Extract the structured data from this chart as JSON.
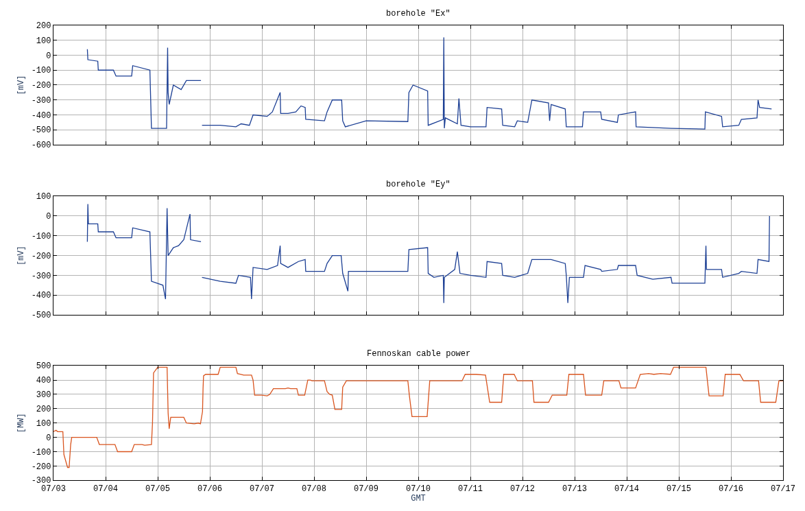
{
  "chart_data": [
    {
      "type": "line",
      "title": "borehole \"Ex\"",
      "ylabel": "[mV]",
      "grid": true,
      "tick_labels": "y",
      "xlim": [
        "--07-03",
        "--07-17"
      ],
      "xticks": [
        {
          "value": "--07-03",
          "label": "07/03"
        },
        {
          "value": "--07-04",
          "label": "07/04"
        },
        {
          "value": "--07-05",
          "label": "07/05"
        },
        {
          "value": "--07-06",
          "label": "07/06"
        },
        {
          "value": "--07-07",
          "label": "07/07"
        },
        {
          "value": "--07-08",
          "label": "07/08"
        },
        {
          "value": "--07-09",
          "label": "07/09"
        },
        {
          "value": "--07-10",
          "label": "07/10"
        },
        {
          "value": "--07-11",
          "label": "07/11"
        },
        {
          "value": "--07-12",
          "label": "07/12"
        },
        {
          "value": "--07-13",
          "label": "07/13"
        },
        {
          "value": "--07-14",
          "label": "07/14"
        },
        {
          "value": "--07-15",
          "label": "07/15"
        },
        {
          "value": "--07-16",
          "label": "07/16"
        },
        {
          "value": "--07-17",
          "label": "07/17"
        }
      ],
      "ylim": [
        -600,
        200
      ],
      "yticks": [
        -600,
        -500,
        -400,
        -300,
        -200,
        -100,
        0,
        100,
        200
      ],
      "series": [
        {
          "color": "#1c3f94",
          "x": [
            "--07-03T15:36",
            "--07-03T15:50",
            "--07-03T20:24",
            "--07-03T20:38",
            "--07-04T03:36",
            "--07-04T04:48",
            "--07-04T12:00",
            "--07-04T12:29",
            "--07-04T20:24",
            "--07-04T21:07",
            "--07-05T04:05",
            "--07-05T04:34",
            "--07-05T04:48",
            "--07-05T05:17",
            "--07-05T07:12",
            "--07-05T10:48",
            "--07-05T13:12",
            "--07-05T19:55",
            "--07-05T20:10",
            "--07-05T20:24",
            "--07-06T04:48",
            "--07-06T12:00",
            "--07-06T14:24",
            "--07-06T18:14",
            "--07-06T19:55",
            "--07-07T02:24",
            "--07-07T04:48",
            "--07-07T08:24",
            "--07-07T08:38",
            "--07-07T12:00",
            "--07-07T15:36",
            "--07-07T18:00",
            "--07-07T19:55",
            "--07-07T20:10",
            "--07-08T04:48",
            "--07-08T06:00",
            "--07-08T08:24",
            "--07-08T12:43",
            "--07-08T13:12",
            "--07-08T14:24",
            "--07-09T00:00",
            "--07-09T19:12",
            "--07-09T19:41",
            "--07-09T21:36",
            "--07-10T04:19",
            "--07-10T04:34",
            "--07-10T11:31",
            "--07-10T11:46",
            "--07-10T12:00",
            "--07-10T12:29",
            "--07-10T18:00",
            "--07-10T18:43",
            "--07-10T19:41",
            "--07-11T00:00",
            "--07-11T07:12",
            "--07-11T07:41",
            "--07-11T14:24",
            "--07-11T14:53",
            "--07-11T20:24",
            "--07-11T21:36",
            "--07-12T02:24",
            "--07-12T04:19",
            "--07-12T12:00",
            "--07-12T12:29",
            "--07-12T13:12",
            "--07-12T19:41",
            "--07-12T20:10",
            "--07-13T03:36",
            "--07-13T04:05",
            "--07-13T12:00",
            "--07-13T12:29",
            "--07-13T19:41",
            "--07-13T20:10",
            "--07-14T04:05",
            "--07-14T04:19",
            "--07-14T20:24",
            "--07-15T12:00",
            "--07-15T12:14",
            "--07-15T19:41",
            "--07-15T20:10",
            "--07-16T03:36",
            "--07-16T04:48",
            "--07-16T12:00",
            "--07-16T12:29",
            "--07-16T13:12",
            "--07-16T18:43"
          ],
          "values": [
            40,
            -30,
            -40,
            -100,
            -100,
            -140,
            -140,
            -70,
            -100,
            -490,
            -490,
            50,
            -250,
            -330,
            -200,
            -230,
            -170,
            -170,
            null,
            -470,
            -470,
            -480,
            -460,
            -470,
            -400,
            -410,
            -380,
            -250,
            -390,
            -390,
            -380,
            -340,
            -350,
            -430,
            -440,
            -380,
            -300,
            -300,
            -440,
            -480,
            -440,
            -445,
            -250,
            -200,
            -240,
            -470,
            -430,
            120,
            -490,
            -420,
            -460,
            -290,
            -470,
            -480,
            -480,
            -350,
            -360,
            -470,
            -480,
            -440,
            -450,
            -300,
            -320,
            -440,
            -330,
            -360,
            -480,
            -480,
            -380,
            -380,
            -430,
            -450,
            -400,
            -380,
            -480,
            -490,
            -495,
            -380,
            -410,
            -480,
            -470,
            -430,
            -420,
            -300,
            -350,
            -360
          ]
        }
      ]
    },
    {
      "type": "line",
      "title": "borehole \"Ey\"",
      "ylabel": "[mV]",
      "grid": true,
      "tick_labels": "y",
      "xlim": [
        "--07-03",
        "--07-17"
      ],
      "xticks": [
        {
          "value": "--07-03",
          "label": "07/03"
        },
        {
          "value": "--07-04",
          "label": "07/04"
        },
        {
          "value": "--07-05",
          "label": "07/05"
        },
        {
          "value": "--07-06",
          "label": "07/06"
        },
        {
          "value": "--07-07",
          "label": "07/07"
        },
        {
          "value": "--07-08",
          "label": "07/08"
        },
        {
          "value": "--07-09",
          "label": "07/09"
        },
        {
          "value": "--07-10",
          "label": "07/10"
        },
        {
          "value": "--07-11",
          "label": "07/11"
        },
        {
          "value": "--07-12",
          "label": "07/12"
        },
        {
          "value": "--07-13",
          "label": "07/13"
        },
        {
          "value": "--07-14",
          "label": "07/14"
        },
        {
          "value": "--07-15",
          "label": "07/15"
        },
        {
          "value": "--07-16",
          "label": "07/16"
        },
        {
          "value": "--07-17",
          "label": "07/17"
        }
      ],
      "ylim": [
        -500,
        100
      ],
      "yticks": [
        -500,
        -400,
        -300,
        -200,
        -100,
        0,
        100
      ],
      "series": [
        {
          "color": "#1c3f94",
          "x": [
            "--07-03T15:36",
            "--07-03T15:50",
            "--07-03T16:05",
            "--07-03T20:24",
            "--07-03T20:38",
            "--07-04T03:36",
            "--07-04T04:48",
            "--07-04T12:00",
            "--07-04T12:29",
            "--07-04T20:24",
            "--07-04T21:07",
            "--07-05T02:24",
            "--07-05T03:36",
            "--07-05T04:19",
            "--07-05T04:48",
            "--07-05T07:12",
            "--07-05T09:36",
            "--07-05T12:00",
            "--07-05T14:53",
            "--07-05T15:07",
            "--07-05T19:55",
            "--07-05T20:10",
            "--07-05T20:24",
            "--07-06T04:48",
            "--07-06T12:00",
            "--07-06T13:12",
            "--07-06T18:43",
            "--07-06T19:12",
            "--07-06T19:55",
            "--07-07T02:24",
            "--07-07T07:12",
            "--07-07T08:24",
            "--07-07T08:38",
            "--07-07T12:00",
            "--07-07T16:48",
            "--07-07T19:55",
            "--07-07T20:10",
            "--07-08T04:48",
            "--07-08T06:00",
            "--07-08T08:24",
            "--07-08T12:29",
            "--07-08T13:12",
            "--07-08T15:36",
            "--07-08T15:50",
            "--07-09T19:12",
            "--07-09T19:41",
            "--07-10T04:19",
            "--07-10T04:34",
            "--07-10T07:12",
            "--07-10T11:31",
            "--07-10T11:46",
            "--07-10T12:00",
            "--07-10T16:48",
            "--07-10T18:00",
            "--07-10T19:12",
            "--07-11T00:00",
            "--07-11T07:12",
            "--07-11T07:41",
            "--07-11T14:24",
            "--07-11T14:53",
            "--07-11T20:24",
            "--07-12T02:24",
            "--07-12T04:19",
            "--07-12T12:00",
            "--07-12T13:12",
            "--07-12T19:41",
            "--07-12T20:10",
            "--07-12T20:53",
            "--07-12T21:36",
            "--07-13T04:05",
            "--07-13T04:48",
            "--07-13T12:00",
            "--07-13T12:29",
            "--07-13T19:41",
            "--07-13T20:10",
            "--07-14T04:05",
            "--07-14T04:48",
            "--07-14T12:00",
            "--07-14T20:24",
            "--07-14T20:53",
            "--07-15T12:00",
            "--07-15T12:29",
            "--07-15T12:43",
            "--07-15T19:41",
            "--07-15T20:10",
            "--07-16T03:36",
            "--07-16T04:48",
            "--07-16T12:00",
            "--07-16T12:29",
            "--07-16T17:31",
            "--07-16T17:46"
          ],
          "values": [
            -130,
            60,
            -40,
            -40,
            -80,
            -80,
            -110,
            -110,
            -60,
            -80,
            -330,
            -350,
            -420,
            40,
            -200,
            -160,
            -150,
            -120,
            10,
            -120,
            -130,
            null,
            -310,
            -330,
            -340,
            -300,
            -310,
            -420,
            -260,
            -270,
            -250,
            -150,
            -240,
            -260,
            -230,
            -220,
            -280,
            -280,
            -240,
            -200,
            -200,
            -290,
            -380,
            -280,
            -280,
            -170,
            -160,
            -290,
            -310,
            -300,
            -440,
            -310,
            -270,
            -180,
            -290,
            -300,
            -310,
            -230,
            -240,
            -300,
            -310,
            -290,
            -220,
            -220,
            -220,
            -240,
            -300,
            -440,
            -310,
            -310,
            -250,
            -270,
            -280,
            -270,
            -250,
            -250,
            -300,
            -320,
            -310,
            -340,
            -340,
            -150,
            -270,
            -270,
            -310,
            -290,
            -280,
            -290,
            -220,
            -230,
            0
          ]
        }
      ]
    },
    {
      "type": "line",
      "title": "Fennoskan cable power",
      "ylabel": "[MW]",
      "xlabel": "GMT",
      "grid": true,
      "xlim": [
        "--07-03",
        "--07-17"
      ],
      "xticks": [
        {
          "value": "--07-03",
          "label": "07/03"
        },
        {
          "value": "--07-04",
          "label": "07/04"
        },
        {
          "value": "--07-05",
          "label": "07/05"
        },
        {
          "value": "--07-06",
          "label": "07/06"
        },
        {
          "value": "--07-07",
          "label": "07/07"
        },
        {
          "value": "--07-08",
          "label": "07/08"
        },
        {
          "value": "--07-09",
          "label": "07/09"
        },
        {
          "value": "--07-10",
          "label": "07/10"
        },
        {
          "value": "--07-11",
          "label": "07/11"
        },
        {
          "value": "--07-12",
          "label": "07/12"
        },
        {
          "value": "--07-13",
          "label": "07/13"
        },
        {
          "value": "--07-14",
          "label": "07/14"
        },
        {
          "value": "--07-15",
          "label": "07/15"
        },
        {
          "value": "--07-16",
          "label": "07/16"
        },
        {
          "value": "--07-17",
          "label": "07/17"
        }
      ],
      "ylim": [
        -300,
        500
      ],
      "yticks": [
        -300,
        -200,
        -100,
        0,
        100,
        200,
        300,
        400,
        500
      ],
      "series": [
        {
          "color": "#d9541e",
          "x": [
            "--07-03T00:00",
            "--07-03T01:12",
            "--07-03T01:55",
            "--07-03T04:19",
            "--07-03T04:48",
            "--07-03T06:29",
            "--07-03T07:12",
            "--07-03T07:55",
            "--07-03T08:24",
            "--07-03T19:55",
            "--07-03T21:07",
            "--07-04T04:19",
            "--07-04T05:31",
            "--07-04T12:00",
            "--07-04T13:12",
            "--07-04T16:48",
            "--07-04T18:00",
            "--07-04T21:07",
            "--07-04T21:36",
            "--07-04T22:05",
            "--07-05T00:00",
            "--07-05T04:19",
            "--07-05T04:48",
            "--07-05T05:17",
            "--07-05T06:00",
            "--07-05T12:00",
            "--07-05T13:12",
            "--07-05T16:48",
            "--07-05T18:43",
            "--07-05T19:41",
            "--07-05T20:38",
            "--07-05T20:53",
            "--07-05T21:07",
            "--07-05T22:05",
            "--07-06T03:50",
            "--07-06T04:48",
            "--07-06T12:00",
            "--07-06T12:43",
            "--07-06T14:24",
            "--07-06T15:36",
            "--07-06T19:12",
            "--07-06T19:55",
            "--07-06T20:38",
            "--07-07T00:00",
            "--07-07T02:24",
            "--07-07T03:36",
            "--07-07T05:17",
            "--07-07T10:48",
            "--07-07T12:00",
            "--07-07T13:12",
            "--07-07T16:05",
            "--07-07T16:48",
            "--07-07T19:41",
            "--07-07T21:07",
            "--07-07T22:19",
            "--07-07T23:02",
            "--07-08T04:48",
            "--07-08T06:00",
            "--07-08T07:12",
            "--07-08T08:24",
            "--07-08T09:36",
            "--07-08T12:43",
            "--07-08T13:12",
            "--07-08T14:53",
            "--07-09T19:12",
            "--07-09T19:55",
            "--07-09T21:07",
            "--07-10T04:05",
            "--07-10T05:17",
            "--07-10T20:10",
            "--07-10T21:36",
            "--07-11T02:38",
            "--07-11T06:58",
            "--07-11T08:53",
            "--07-11T14:24",
            "--07-11T15:22",
            "--07-11T20:10",
            "--07-11T21:36",
            "--07-12T04:34",
            "--07-12T05:17",
            "--07-12T12:00",
            "--07-12T13:41",
            "--07-12T20:24",
            "--07-12T21:22",
            "--07-13T04:05",
            "--07-13T05:02",
            "--07-13T12:29",
            "--07-13T13:26",
            "--07-13T20:24",
            "--07-13T21:22",
            "--07-14T04:05",
            "--07-14T06:14",
            "--07-14T10:05",
            "--07-14T12:29",
            "--07-14T15:36",
            "--07-14T20:10",
            "--07-14T21:36",
            "--07-15T12:29",
            "--07-15T13:55",
            "--07-15T20:24",
            "--07-15T21:22",
            "--07-16T02:24",
            "--07-16T04:05",
            "--07-16T05:46",
            "--07-16T12:43",
            "--07-16T13:41",
            "--07-16T20:38",
            "--07-16T22:05",
            "--07-17T00:00"
          ],
          "values": [
            40,
            50,
            40,
            40,
            -120,
            -210,
            -210,
            -50,
            0,
            0,
            -50,
            -50,
            -100,
            -100,
            -50,
            -50,
            -55,
            -50,
            100,
            450,
            490,
            490,
            170,
            60,
            140,
            140,
            100,
            95,
            100,
            95,
            180,
            340,
            430,
            440,
            440,
            490,
            490,
            445,
            440,
            435,
            435,
            400,
            295,
            295,
            290,
            300,
            340,
            340,
            345,
            340,
            340,
            295,
            295,
            400,
            400,
            395,
            395,
            320,
            300,
            295,
            195,
            195,
            350,
            395,
            395,
            290,
            145,
            145,
            395,
            395,
            440,
            440,
            435,
            245,
            245,
            440,
            440,
            395,
            395,
            245,
            245,
            295,
            295,
            440,
            440,
            295,
            295,
            395,
            395,
            345,
            345,
            440,
            445,
            440,
            445,
            440,
            490,
            490,
            290,
            290,
            440,
            440,
            440,
            395,
            395,
            245,
            245,
            395,
            395
          ]
        }
      ]
    }
  ]
}
